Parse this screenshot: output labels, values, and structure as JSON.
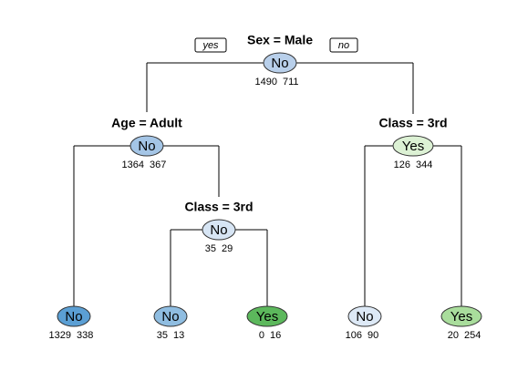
{
  "edge_labels": {
    "yes": "yes",
    "no": "no"
  },
  "nodes": [
    {
      "split": "Sex = Male",
      "label": "No",
      "counts": [
        1490,
        711
      ],
      "color": "#b8cfea"
    },
    {
      "split": "Age = Adult",
      "label": "No",
      "counts": [
        1364,
        367
      ],
      "color": "#a4c5e6"
    },
    {
      "split": "Class = 3rd",
      "label": "Yes",
      "counts": [
        126,
        344
      ],
      "color": "#dcf1d4"
    },
    {
      "label": "No",
      "counts": [
        1329,
        338
      ],
      "color": "#5b9fd4"
    },
    {
      "split": "Class = 3rd",
      "label": "No",
      "counts": [
        35,
        29
      ],
      "color": "#d7e5f4"
    },
    {
      "label": "No",
      "counts": [
        35,
        13
      ],
      "color": "#8fbde1"
    },
    {
      "label": "Yes",
      "counts": [
        0,
        16
      ],
      "color": "#5cb85c"
    },
    {
      "label": "No",
      "counts": [
        106,
        90
      ],
      "color": "#dde9f6"
    },
    {
      "label": "Yes",
      "counts": [
        20,
        254
      ],
      "color": "#a9dd9c"
    }
  ]
}
